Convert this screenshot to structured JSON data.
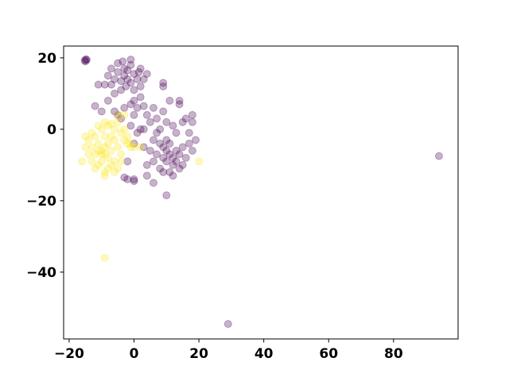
{
  "chart_data": {
    "type": "scatter",
    "title": "",
    "xlabel": "",
    "ylabel": "",
    "xlim": [
      -21.7,
      99.9
    ],
    "ylim": [
      -58.7,
      23.3
    ],
    "grid": false,
    "marker_alpha": 0.3,
    "xticks": [
      -20,
      0,
      20,
      40,
      60,
      80
    ],
    "yticks": [
      20,
      0,
      -20,
      -40
    ],
    "xtick_labels": [
      "−20",
      "0",
      "20",
      "40",
      "60",
      "80"
    ],
    "ytick_labels": [
      "20",
      "0",
      "−20",
      "−40"
    ],
    "series": [
      {
        "color": "#440154",
        "points": [
          [
            -15.2,
            19.3
          ],
          [
            -14.8,
            19.6
          ],
          [
            -15.0,
            19.0
          ],
          [
            -14.6,
            19.4
          ],
          [
            -2,
            14
          ],
          [
            -3,
            15
          ],
          [
            -1,
            13
          ],
          [
            -4,
            13.5
          ],
          [
            0,
            15.5
          ],
          [
            -2.5,
            12
          ],
          [
            -5,
            16
          ],
          [
            1,
            14
          ],
          [
            -3,
            17
          ],
          [
            -1,
            18
          ],
          [
            -6,
            14
          ],
          [
            -7,
            12.5
          ],
          [
            2,
            12
          ],
          [
            -4,
            11
          ],
          [
            0,
            11
          ],
          [
            -2,
            16.5
          ],
          [
            -5,
            18.5
          ],
          [
            1.5,
            16
          ],
          [
            -8,
            15
          ],
          [
            -9,
            12.5
          ],
          [
            -6,
            10
          ],
          [
            3,
            14
          ],
          [
            2,
            17
          ],
          [
            -3.5,
            19
          ],
          [
            -1,
            19.5
          ],
          [
            4,
            15.5
          ],
          [
            -7,
            17
          ],
          [
            -11,
            12.5
          ],
          [
            -8,
            8
          ],
          [
            -12,
            6.5
          ],
          [
            -10,
            5
          ],
          [
            -6,
            5
          ],
          [
            -3,
            6
          ],
          [
            -1,
            7
          ],
          [
            0,
            8
          ],
          [
            2,
            9
          ],
          [
            10,
            -6
          ],
          [
            11,
            -7
          ],
          [
            9,
            -5
          ],
          [
            12,
            -8
          ],
          [
            10,
            -9
          ],
          [
            13,
            -6
          ],
          [
            8,
            -4
          ],
          [
            11,
            -4
          ],
          [
            14,
            -7
          ],
          [
            9,
            -8
          ],
          [
            12,
            -10
          ],
          [
            15,
            -5
          ],
          [
            7,
            -7
          ],
          [
            10,
            -3
          ],
          [
            13,
            -9
          ],
          [
            16,
            -8
          ],
          [
            11,
            -12
          ],
          [
            8,
            -11
          ],
          [
            14,
            -11
          ],
          [
            6,
            -9
          ],
          [
            17,
            -4
          ],
          [
            18,
            -6
          ],
          [
            15,
            -10
          ],
          [
            12,
            -13
          ],
          [
            9,
            -12
          ],
          [
            4,
            -10
          ],
          [
            5,
            -6
          ],
          [
            3,
            -5
          ],
          [
            6,
            -3
          ],
          [
            7,
            -1
          ],
          [
            8,
            0
          ],
          [
            10,
            2
          ],
          [
            12,
            1
          ],
          [
            5,
            2
          ],
          [
            3,
            0
          ],
          [
            4,
            4
          ],
          [
            7,
            3
          ],
          [
            9,
            5
          ],
          [
            6,
            6
          ],
          [
            11,
            8
          ],
          [
            14,
            7
          ],
          [
            16,
            3
          ],
          [
            18,
            4
          ],
          [
            15,
            2
          ],
          [
            13,
            -1
          ],
          [
            17,
            -1
          ],
          [
            9,
            13
          ],
          [
            9,
            12
          ],
          [
            14,
            8
          ],
          [
            18,
            2
          ],
          [
            19,
            -3
          ],
          [
            0,
            -4
          ],
          [
            -1,
            1
          ],
          [
            1,
            -1
          ],
          [
            2,
            0
          ],
          [
            -2,
            -14
          ],
          [
            0,
            -14.5
          ],
          [
            0,
            -14
          ],
          [
            -3,
            -13.5
          ],
          [
            4,
            -13
          ],
          [
            10,
            -18.5
          ],
          [
            6,
            -15
          ],
          [
            -4,
            3
          ],
          [
            -5,
            4
          ],
          [
            0,
            4
          ],
          [
            1,
            6
          ],
          [
            3,
            6.5
          ],
          [
            -2,
            -9
          ],
          [
            94,
            -7.5
          ],
          [
            29,
            -54.5
          ]
        ]
      },
      {
        "color": "#fde725",
        "points": [
          [
            -9,
            -5
          ],
          [
            -8,
            -4
          ],
          [
            -10,
            -6
          ],
          [
            -7,
            -6
          ],
          [
            -11,
            -4
          ],
          [
            -9,
            -2
          ],
          [
            -8,
            -8
          ],
          [
            -12,
            -7
          ],
          [
            -6,
            -3
          ],
          [
            -10,
            -9
          ],
          [
            -13,
            -5
          ],
          [
            -7,
            -10
          ],
          [
            -11,
            -10
          ],
          [
            -9,
            -12
          ],
          [
            -5,
            -5
          ],
          [
            -4,
            -7
          ],
          [
            -6,
            -9
          ],
          [
            -14,
            -3
          ],
          [
            -15,
            -5
          ],
          [
            -13,
            -9
          ],
          [
            -16,
            -9
          ],
          [
            -14,
            -7
          ],
          [
            -12,
            -2
          ],
          [
            -10,
            0
          ],
          [
            -8,
            1
          ],
          [
            -6,
            0
          ],
          [
            -4,
            -1
          ],
          [
            -3,
            -3
          ],
          [
            -5,
            -11
          ],
          [
            -8,
            -11
          ],
          [
            -12,
            -11
          ],
          [
            -10,
            -7
          ],
          [
            -7,
            -2
          ],
          [
            -9,
            -7
          ],
          [
            -11,
            -6
          ],
          [
            -13,
            -1
          ],
          [
            -15,
            -2
          ],
          [
            -5,
            2
          ],
          [
            -3,
            0
          ],
          [
            -2,
            -4
          ],
          [
            -1,
            -4
          ],
          [
            -1,
            -5
          ],
          [
            -7,
            1.5
          ],
          [
            -9,
            2
          ],
          [
            -11,
            1
          ],
          [
            -4,
            -9
          ],
          [
            -6,
            -12
          ],
          [
            -9,
            -13
          ],
          [
            -5,
            4
          ],
          [
            -3,
            4
          ],
          [
            -2,
            -2
          ],
          [
            0,
            -5
          ],
          [
            2,
            -5
          ],
          [
            20,
            -9
          ],
          [
            -9,
            -36
          ]
        ]
      }
    ]
  }
}
